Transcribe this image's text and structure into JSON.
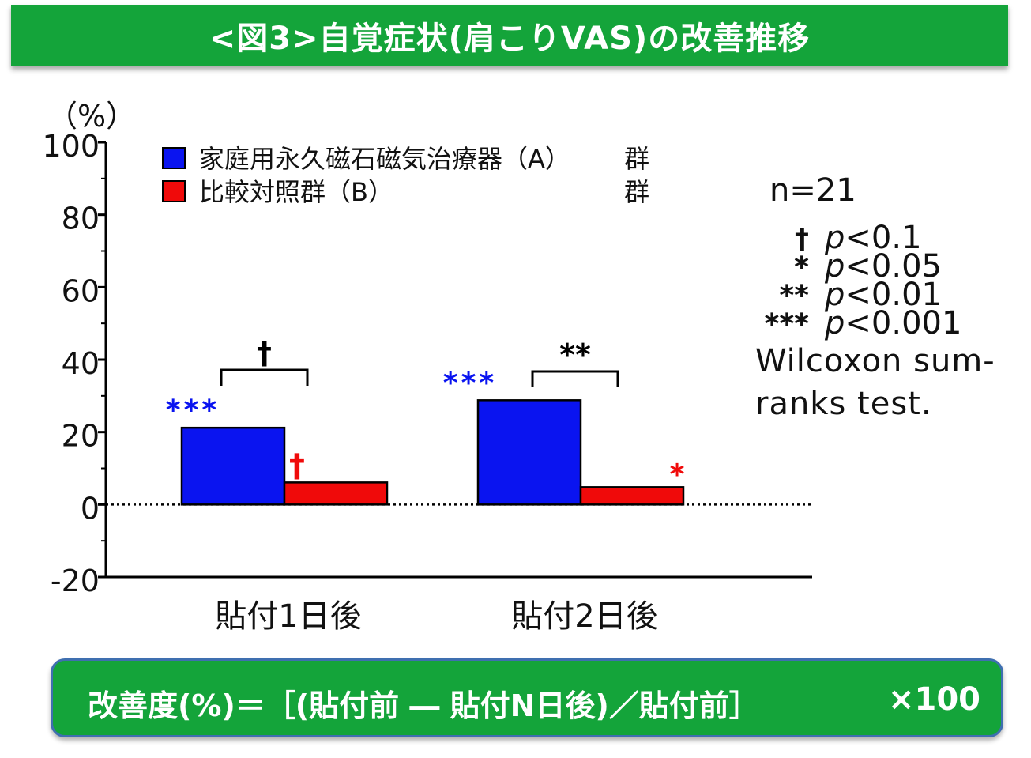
{
  "title": "<図3>自覚症状(肩こりVAS)の改善推移",
  "chart_data": {
    "type": "bar",
    "ylabel": "（%）",
    "ylim": [
      -20,
      100
    ],
    "yticks": [
      "100",
      "80",
      "60",
      "40",
      "20",
      "0",
      "-20"
    ],
    "categories": [
      "貼付1日後",
      "貼付2日後"
    ],
    "series": [
      {
        "name": "家庭用永久磁石磁気治療器（A）群",
        "color": "#0a14f0",
        "values": [
          21.2,
          28.8
        ]
      },
      {
        "name": "比較対照群（B）群",
        "color": "#f00a0a",
        "values": [
          6.1,
          4.8
        ]
      }
    ],
    "legend": [
      {
        "label": "家庭用永久磁石磁気治療器（A）",
        "suffix": "群",
        "color": "#0a14f0"
      },
      {
        "label": "比較対照群（B）",
        "suffix": "群",
        "color": "#f00a0a"
      }
    ],
    "annotations": {
      "a_day1": "***",
      "b_day1": "†",
      "between_day1": "†",
      "a_day2": "***",
      "b_day2": "*",
      "between_day2": "**"
    },
    "zero_line": "dotted"
  },
  "notes": {
    "n": "n=21",
    "significance": [
      {
        "symbol": "†",
        "prefix": "p",
        "text": "<0.1"
      },
      {
        "symbol": "*",
        "prefix": "p",
        "text": "<0.05"
      },
      {
        "symbol": "**",
        "prefix": "p",
        "text": "<0.01"
      },
      {
        "symbol": "***",
        "prefix": "p",
        "text": "<0.001"
      }
    ],
    "test_line1": "Wilcoxon sum-",
    "test_line2": "ranks test."
  },
  "formula": {
    "text": "改善度(%)＝［(貼付前 ― 貼付N日後)／貼付前］",
    "multiplier": "×100"
  }
}
